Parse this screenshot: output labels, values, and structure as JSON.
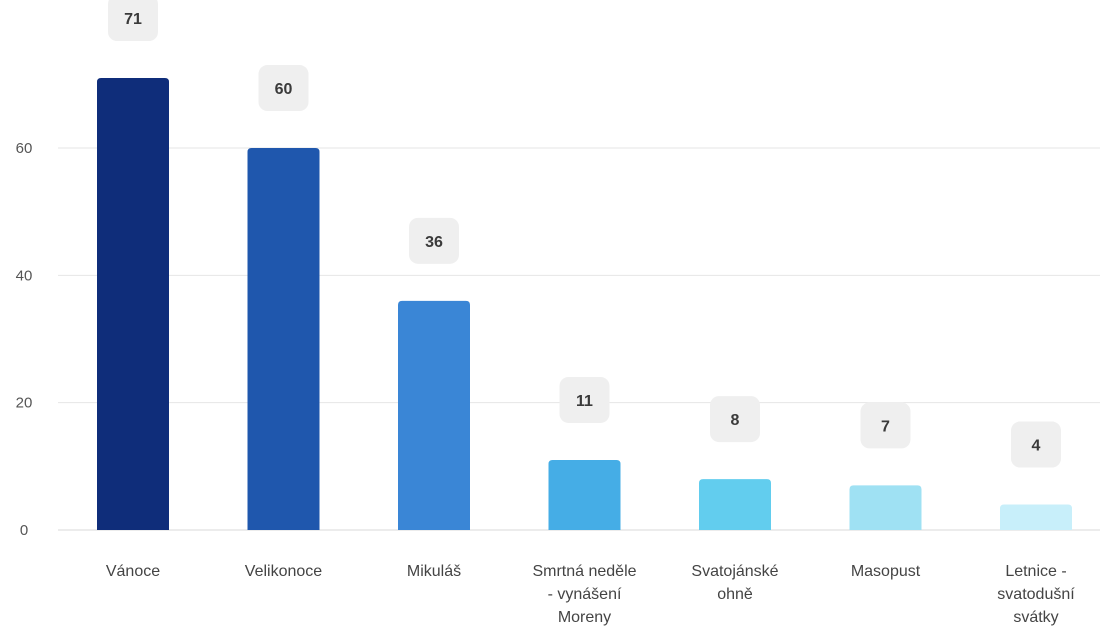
{
  "chart_data": {
    "type": "bar",
    "categories": [
      [
        "Vánoce"
      ],
      [
        "Velikonoce"
      ],
      [
        "Mikuláš"
      ],
      [
        "Smrtná neděle",
        "- vynášení",
        "Moreny"
      ],
      [
        "Svatojánské",
        "ohně"
      ],
      [
        "Masopust"
      ],
      [
        "Letnice -",
        "svatodušní",
        "svátky"
      ]
    ],
    "values": [
      71,
      60,
      36,
      11,
      8,
      7,
      4
    ],
    "colors": [
      "#0f2d7a",
      "#1f57ad",
      "#3a86d6",
      "#45ade6",
      "#62cdee",
      "#9fe1f3",
      "#c8effa"
    ],
    "yticks": [
      0,
      20,
      40,
      60
    ],
    "ylim": [
      0,
      71
    ],
    "grid": true,
    "legend": "none"
  }
}
